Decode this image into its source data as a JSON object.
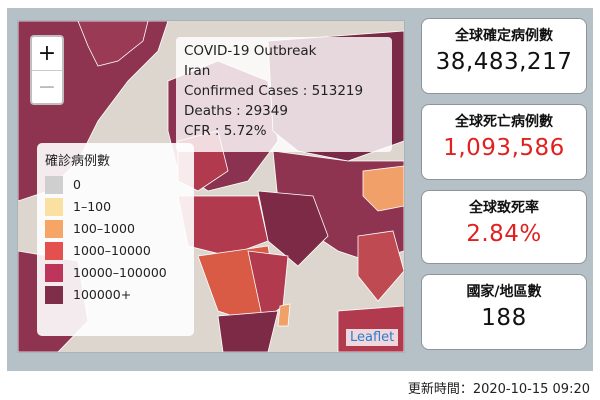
{
  "map": {
    "zoom_in_label": "+",
    "zoom_out_label": "−",
    "attribution": "Leaflet",
    "colors": {
      "sea": "#ddd6cf",
      "high": "#7d2a47",
      "mid": "#b23a4e",
      "low": "#d95b45",
      "light": "#f0a068"
    }
  },
  "info": {
    "title": "COVID-19 Outbreak",
    "country": "Iran",
    "confirmed": "Confirmed Cases : 513219",
    "deaths": "Deaths : 29349",
    "cfr": "CFR : 5.72%"
  },
  "legend": {
    "title": "確診病例數",
    "items": [
      {
        "label": "0",
        "color": "#cfcfcf"
      },
      {
        "label": "1–100",
        "color": "#fbe1a1"
      },
      {
        "label": "100–1000",
        "color": "#f6a567"
      },
      {
        "label": "1000–10000",
        "color": "#e4504e"
      },
      {
        "label": "10000–100000",
        "color": "#bd355a"
      },
      {
        "label": "100000+",
        "color": "#7f2e4a"
      }
    ]
  },
  "stats": [
    {
      "label": "全球確定病例數",
      "value": "38,483,217",
      "color": "#111111"
    },
    {
      "label": "全球死亡病例數",
      "value": "1,093,586",
      "color": "#e0211f"
    },
    {
      "label": "全球致死率",
      "value": "2.84%",
      "color": "#e0211f"
    },
    {
      "label": "國家/地區數",
      "value": "188",
      "color": "#111111"
    }
  ],
  "footer": "更新時間：2020-10-15 09:20"
}
